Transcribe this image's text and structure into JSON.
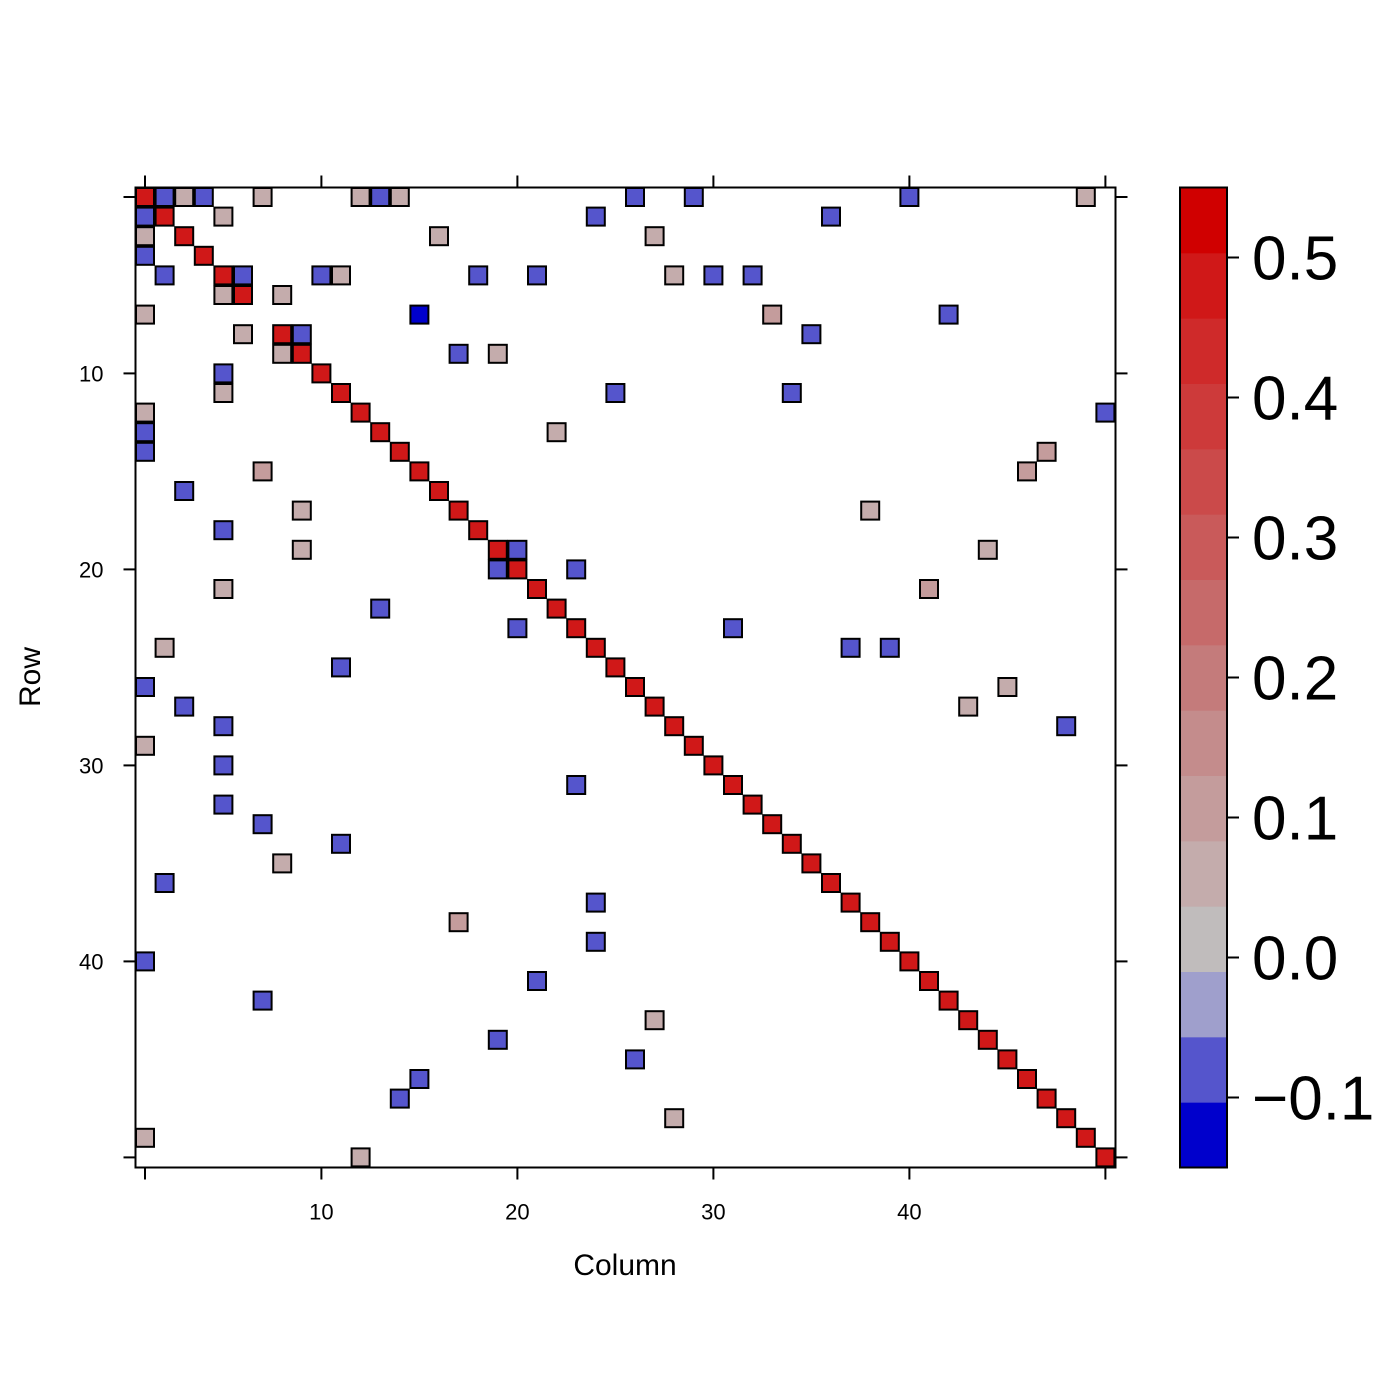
{
  "chart_data": {
    "type": "heatmap",
    "title": "",
    "xlabel": "Column",
    "ylabel": "Row",
    "nrows": 50,
    "ncols": 50,
    "xlim": [
      1,
      50
    ],
    "ylim": [
      1,
      50
    ],
    "x_ticks": [
      10,
      20,
      30,
      40
    ],
    "y_ticks": [
      10,
      20,
      30,
      40
    ],
    "colorbar": {
      "range": [
        -0.15,
        0.55
      ],
      "ticks": [
        -0.1,
        0.0,
        0.1,
        0.2,
        0.3,
        0.4,
        0.5
      ],
      "tick_labels": [
        "−0.1",
        "0.0",
        "0.1",
        "0.2",
        "0.3",
        "0.4",
        "0.5"
      ],
      "colors": [
        "#0000cc",
        "#5555cc",
        "#9f9fcc",
        "#c0bcbc",
        "#c4acac",
        "#c49c9c",
        "#c48c8c",
        "#c47b7b",
        "#c66a6a",
        "#c95a5a",
        "#cb4a4a",
        "#cd3a3a",
        "#cf2a2a",
        "#d01818",
        "#d00000"
      ]
    },
    "diagonal_value": 0.48,
    "diagonal_exception": {
      "row": 7,
      "col": 15,
      "value": -0.14
    },
    "cells": [
      {
        "row": 1,
        "col": 2,
        "value": -0.08
      },
      {
        "row": 1,
        "col": 3,
        "value": 0.08
      },
      {
        "row": 1,
        "col": 4,
        "value": -0.08
      },
      {
        "row": 1,
        "col": 7,
        "value": 0.08
      },
      {
        "row": 1,
        "col": 12,
        "value": 0.08
      },
      {
        "row": 1,
        "col": 13,
        "value": -0.08
      },
      {
        "row": 1,
        "col": 14,
        "value": 0.08
      },
      {
        "row": 1,
        "col": 26,
        "value": -0.08
      },
      {
        "row": 1,
        "col": 29,
        "value": -0.08
      },
      {
        "row": 1,
        "col": 40,
        "value": -0.08
      },
      {
        "row": 1,
        "col": 49,
        "value": 0.08
      },
      {
        "row": 2,
        "col": 1,
        "value": -0.08
      },
      {
        "row": 2,
        "col": 5,
        "value": 0.08
      },
      {
        "row": 2,
        "col": 24,
        "value": -0.08
      },
      {
        "row": 2,
        "col": 36,
        "value": -0.08
      },
      {
        "row": 3,
        "col": 1,
        "value": 0.08
      },
      {
        "row": 3,
        "col": 16,
        "value": 0.08
      },
      {
        "row": 3,
        "col": 27,
        "value": 0.08
      },
      {
        "row": 4,
        "col": 1,
        "value": -0.08
      },
      {
        "row": 5,
        "col": 2,
        "value": -0.08
      },
      {
        "row": 5,
        "col": 6,
        "value": -0.08
      },
      {
        "row": 5,
        "col": 10,
        "value": -0.08
      },
      {
        "row": 5,
        "col": 11,
        "value": 0.08
      },
      {
        "row": 5,
        "col": 18,
        "value": -0.08
      },
      {
        "row": 5,
        "col": 21,
        "value": -0.08
      },
      {
        "row": 5,
        "col": 28,
        "value": 0.08
      },
      {
        "row": 5,
        "col": 30,
        "value": -0.08
      },
      {
        "row": 5,
        "col": 32,
        "value": -0.08
      },
      {
        "row": 6,
        "col": 5,
        "value": 0.08
      },
      {
        "row": 6,
        "col": 8,
        "value": 0.08
      },
      {
        "row": 7,
        "col": 1,
        "value": 0.08
      },
      {
        "row": 7,
        "col": 33,
        "value": 0.1
      },
      {
        "row": 7,
        "col": 42,
        "value": -0.08
      },
      {
        "row": 8,
        "col": 6,
        "value": 0.08
      },
      {
        "row": 8,
        "col": 9,
        "value": -0.08
      },
      {
        "row": 8,
        "col": 35,
        "value": -0.08
      },
      {
        "row": 9,
        "col": 8,
        "value": 0.08
      },
      {
        "row": 9,
        "col": 17,
        "value": -0.08
      },
      {
        "row": 9,
        "col": 19,
        "value": 0.08
      },
      {
        "row": 10,
        "col": 5,
        "value": -0.08
      },
      {
        "row": 11,
        "col": 5,
        "value": 0.08
      },
      {
        "row": 11,
        "col": 25,
        "value": -0.08
      },
      {
        "row": 11,
        "col": 34,
        "value": -0.08
      },
      {
        "row": 12,
        "col": 1,
        "value": 0.08
      },
      {
        "row": 12,
        "col": 50,
        "value": -0.08
      },
      {
        "row": 13,
        "col": 1,
        "value": -0.08
      },
      {
        "row": 13,
        "col": 22,
        "value": 0.08
      },
      {
        "row": 14,
        "col": 1,
        "value": -0.08
      },
      {
        "row": 14,
        "col": 47,
        "value": 0.1
      },
      {
        "row": 15,
        "col": 7,
        "value": 0.1
      },
      {
        "row": 15,
        "col": 46,
        "value": 0.1
      },
      {
        "row": 16,
        "col": 3,
        "value": -0.08
      },
      {
        "row": 17,
        "col": 9,
        "value": 0.08
      },
      {
        "row": 17,
        "col": 38,
        "value": 0.08
      },
      {
        "row": 18,
        "col": 5,
        "value": -0.08
      },
      {
        "row": 19,
        "col": 9,
        "value": 0.08
      },
      {
        "row": 19,
        "col": 20,
        "value": -0.08
      },
      {
        "row": 19,
        "col": 44,
        "value": 0.08
      },
      {
        "row": 20,
        "col": 19,
        "value": -0.08
      },
      {
        "row": 20,
        "col": 23,
        "value": -0.08
      },
      {
        "row": 21,
        "col": 5,
        "value": 0.08
      },
      {
        "row": 21,
        "col": 41,
        "value": 0.1
      },
      {
        "row": 22,
        "col": 13,
        "value": -0.08
      },
      {
        "row": 23,
        "col": 20,
        "value": -0.08
      },
      {
        "row": 23,
        "col": 31,
        "value": -0.08
      },
      {
        "row": 24,
        "col": 2,
        "value": 0.08
      },
      {
        "row": 24,
        "col": 37,
        "value": -0.08
      },
      {
        "row": 24,
        "col": 39,
        "value": -0.08
      },
      {
        "row": 25,
        "col": 11,
        "value": -0.08
      },
      {
        "row": 26,
        "col": 1,
        "value": -0.08
      },
      {
        "row": 26,
        "col": 45,
        "value": 0.08
      },
      {
        "row": 27,
        "col": 3,
        "value": -0.08
      },
      {
        "row": 27,
        "col": 43,
        "value": 0.08
      },
      {
        "row": 28,
        "col": 5,
        "value": -0.08
      },
      {
        "row": 28,
        "col": 48,
        "value": -0.08
      },
      {
        "row": 29,
        "col": 1,
        "value": 0.08
      },
      {
        "row": 30,
        "col": 5,
        "value": -0.08
      },
      {
        "row": 31,
        "col": 23,
        "value": -0.08
      },
      {
        "row": 32,
        "col": 5,
        "value": -0.08
      },
      {
        "row": 33,
        "col": 7,
        "value": -0.08
      },
      {
        "row": 34,
        "col": 11,
        "value": -0.08
      },
      {
        "row": 35,
        "col": 8,
        "value": 0.08
      },
      {
        "row": 36,
        "col": 2,
        "value": -0.08
      },
      {
        "row": 37,
        "col": 24,
        "value": -0.08
      },
      {
        "row": 38,
        "col": 17,
        "value": 0.1
      },
      {
        "row": 39,
        "col": 24,
        "value": -0.08
      },
      {
        "row": 40,
        "col": 1,
        "value": -0.08
      },
      {
        "row": 41,
        "col": 21,
        "value": -0.08
      },
      {
        "row": 42,
        "col": 7,
        "value": -0.08
      },
      {
        "row": 43,
        "col": 27,
        "value": 0.08
      },
      {
        "row": 44,
        "col": 19,
        "value": -0.08
      },
      {
        "row": 45,
        "col": 26,
        "value": -0.08
      },
      {
        "row": 46,
        "col": 15,
        "value": -0.08
      },
      {
        "row": 47,
        "col": 14,
        "value": -0.08
      },
      {
        "row": 48,
        "col": 28,
        "value": 0.08
      },
      {
        "row": 49,
        "col": 1,
        "value": 0.08
      },
      {
        "row": 50,
        "col": 12,
        "value": 0.08
      }
    ]
  }
}
